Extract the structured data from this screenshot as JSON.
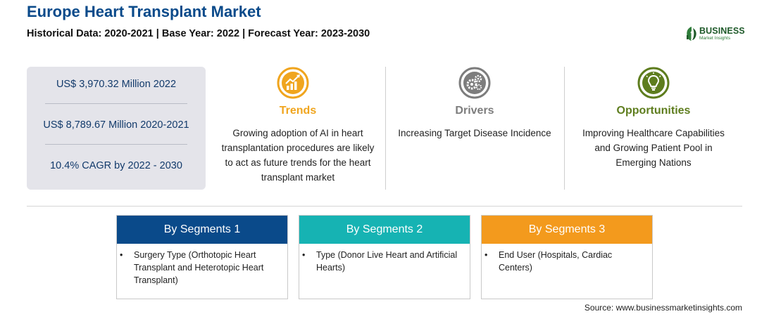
{
  "header": {
    "title": "Europe Heart Transplant Market",
    "subtitle": "Historical Data: 2020-2021 | Base Year: 2022 | Forecast Year: 2023-2030"
  },
  "logo": {
    "name": "BUSINESS",
    "tagline": "Market Insights",
    "color": "#1f5a2a"
  },
  "stats": [
    "US$ 3,970.32 Million 2022",
    "US$ 8,789.67 Million 2020-2021",
    "10.4% CAGR by 2022 - 2030"
  ],
  "columns": [
    {
      "heading": "Trends",
      "icon": "trending-chart-icon",
      "color": "#f0a51e",
      "text": "Growing adoption of AI in heart transplantation procedures are likely to act as future trends for the heart transplant market"
    },
    {
      "heading": "Drivers",
      "icon": "gears-icon",
      "color": "#7d7d7d",
      "text": "Increasing Target Disease Incidence"
    },
    {
      "heading": "Opportunities",
      "icon": "lightbulb-icon",
      "color": "#5e7d1e",
      "text": "Improving Healthcare Capabilities and Growing Patient Pool in Emerging Nations"
    }
  ],
  "segments": [
    {
      "heading": "By Segments 1",
      "color": "#0a4a8a",
      "items": [
        "Surgery Type (Orthotopic Heart Transplant and Heterotopic Heart Transplant)"
      ]
    },
    {
      "heading": "By Segments 2",
      "color": "#16b3b3",
      "items": [
        "Type (Donor Live Heart and Artificial Hearts)"
      ]
    },
    {
      "heading": "By Segments 3",
      "color": "#f39a1d",
      "items": [
        "End User (Hospitals, Cardiac Centers)"
      ]
    }
  ],
  "source": "Source: www.businessmarketinsights.com"
}
